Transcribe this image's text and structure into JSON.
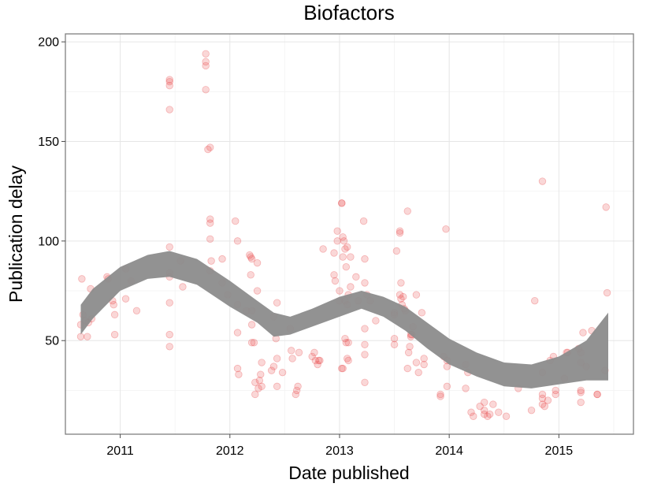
{
  "chart_data": {
    "type": "scatter",
    "title": "Biofactors",
    "xlabel": "Date published",
    "ylabel": "Publication delay",
    "x_ticks": [
      "2011",
      "2012",
      "2013",
      "2014",
      "2015"
    ],
    "y_ticks": [
      "50",
      "100",
      "150",
      "200"
    ],
    "xlim": [
      2010.5,
      2015.68
    ],
    "ylim": [
      3,
      204
    ],
    "grid": true,
    "point_color": "#e8474a",
    "band_color": "#8c8c8c",
    "points": [
      [
        2010.64,
        58
      ],
      [
        2010.64,
        52
      ],
      [
        2010.65,
        81
      ],
      [
        2010.66,
        63
      ],
      [
        2010.68,
        60
      ],
      [
        2010.7,
        52
      ],
      [
        2010.71,
        59
      ],
      [
        2010.73,
        76
      ],
      [
        2010.74,
        61
      ],
      [
        2010.88,
        82
      ],
      [
        2010.89,
        81
      ],
      [
        2010.93,
        70
      ],
      [
        2010.94,
        68
      ],
      [
        2010.95,
        63
      ],
      [
        2010.95,
        53
      ],
      [
        2011.05,
        86
      ],
      [
        2011.05,
        71
      ],
      [
        2011.1,
        80
      ],
      [
        2011.15,
        65
      ],
      [
        2011.45,
        181
      ],
      [
        2011.45,
        180
      ],
      [
        2011.45,
        178
      ],
      [
        2011.45,
        166
      ],
      [
        2011.45,
        97
      ],
      [
        2011.45,
        84
      ],
      [
        2011.45,
        82
      ],
      [
        2011.45,
        69
      ],
      [
        2011.45,
        53
      ],
      [
        2011.45,
        47
      ],
      [
        2011.55,
        90
      ],
      [
        2011.57,
        77
      ],
      [
        2011.78,
        194
      ],
      [
        2011.78,
        190
      ],
      [
        2011.78,
        188
      ],
      [
        2011.78,
        176
      ],
      [
        2011.8,
        146
      ],
      [
        2011.82,
        147
      ],
      [
        2011.82,
        111
      ],
      [
        2011.82,
        109
      ],
      [
        2011.82,
        101
      ],
      [
        2011.83,
        90
      ],
      [
        2011.82,
        85
      ],
      [
        2011.93,
        91
      ],
      [
        2011.93,
        79
      ],
      [
        2011.98,
        73
      ],
      [
        2012.05,
        110
      ],
      [
        2012.07,
        100
      ],
      [
        2012.07,
        68
      ],
      [
        2012.07,
        54
      ],
      [
        2012.07,
        36
      ],
      [
        2012.08,
        33
      ],
      [
        2012.15,
        65
      ],
      [
        2012.18,
        93
      ],
      [
        2012.19,
        92
      ],
      [
        2012.2,
        91
      ],
      [
        2012.19,
        83
      ],
      [
        2012.2,
        65
      ],
      [
        2012.2,
        58
      ],
      [
        2012.2,
        49
      ],
      [
        2012.22,
        49
      ],
      [
        2012.25,
        89
      ],
      [
        2012.25,
        75
      ],
      [
        2012.23,
        29
      ],
      [
        2012.23,
        23
      ],
      [
        2012.26,
        26
      ],
      [
        2012.27,
        30
      ],
      [
        2012.28,
        33
      ],
      [
        2012.29,
        39
      ],
      [
        2012.29,
        27
      ],
      [
        2012.38,
        35
      ],
      [
        2012.4,
        37
      ],
      [
        2012.4,
        62
      ],
      [
        2012.42,
        51
      ],
      [
        2012.43,
        69
      ],
      [
        2012.43,
        41
      ],
      [
        2012.43,
        27
      ],
      [
        2012.48,
        34
      ],
      [
        2012.55,
        56
      ],
      [
        2012.56,
        45
      ],
      [
        2012.57,
        41
      ],
      [
        2012.6,
        23
      ],
      [
        2012.61,
        25
      ],
      [
        2012.62,
        27
      ],
      [
        2012.63,
        44
      ],
      [
        2012.75,
        42
      ],
      [
        2012.77,
        44
      ],
      [
        2012.78,
        40
      ],
      [
        2012.8,
        38
      ],
      [
        2012.81,
        40
      ],
      [
        2012.82,
        40
      ],
      [
        2012.85,
        96
      ],
      [
        2012.95,
        94
      ],
      [
        2012.95,
        83
      ],
      [
        2012.96,
        80
      ],
      [
        2012.98,
        105
      ],
      [
        2012.98,
        100
      ],
      [
        2013.0,
        70
      ],
      [
        2013.0,
        75
      ],
      [
        2013.02,
        119
      ],
      [
        2013.02,
        119
      ],
      [
        2013.03,
        92
      ],
      [
        2013.03,
        102
      ],
      [
        2013.04,
        100
      ],
      [
        2013.05,
        96
      ],
      [
        2013.06,
        87
      ],
      [
        2013.07,
        97
      ],
      [
        2013.05,
        70
      ],
      [
        2013.07,
        68
      ],
      [
        2013.08,
        73
      ],
      [
        2013.1,
        92
      ],
      [
        2013.1,
        77
      ],
      [
        2013.02,
        36
      ],
      [
        2013.03,
        36
      ],
      [
        2013.05,
        51
      ],
      [
        2013.06,
        49
      ],
      [
        2013.07,
        41
      ],
      [
        2013.08,
        40
      ],
      [
        2013.08,
        49
      ],
      [
        2013.15,
        82
      ],
      [
        2013.17,
        70
      ],
      [
        2013.22,
        110
      ],
      [
        2013.23,
        91
      ],
      [
        2013.23,
        79
      ],
      [
        2013.23,
        56
      ],
      [
        2013.23,
        48
      ],
      [
        2013.23,
        43
      ],
      [
        2013.23,
        29
      ],
      [
        2013.25,
        73
      ],
      [
        2013.28,
        70
      ],
      [
        2013.33,
        60
      ],
      [
        2013.5,
        64
      ],
      [
        2013.5,
        63
      ],
      [
        2013.5,
        51
      ],
      [
        2013.5,
        48
      ],
      [
        2013.52,
        95
      ],
      [
        2013.55,
        105
      ],
      [
        2013.55,
        104
      ],
      [
        2013.55,
        73
      ],
      [
        2013.56,
        79
      ],
      [
        2013.56,
        71
      ],
      [
        2013.57,
        68
      ],
      [
        2013.58,
        72
      ],
      [
        2013.59,
        66
      ],
      [
        2013.6,
        65
      ],
      [
        2013.62,
        115
      ],
      [
        2013.62,
        36
      ],
      [
        2013.63,
        44
      ],
      [
        2013.64,
        47
      ],
      [
        2013.65,
        53
      ],
      [
        2013.65,
        52
      ],
      [
        2013.66,
        53
      ],
      [
        2013.67,
        57
      ],
      [
        2013.7,
        73
      ],
      [
        2013.7,
        39
      ],
      [
        2013.72,
        34
      ],
      [
        2013.75,
        64
      ],
      [
        2013.77,
        41
      ],
      [
        2013.77,
        38
      ],
      [
        2013.92,
        23
      ],
      [
        2013.92,
        22
      ],
      [
        2013.95,
        42
      ],
      [
        2013.97,
        106
      ],
      [
        2013.98,
        40
      ],
      [
        2013.98,
        37
      ],
      [
        2013.98,
        27
      ],
      [
        2014.15,
        38
      ],
      [
        2014.17,
        34
      ],
      [
        2014.15,
        26
      ],
      [
        2014.2,
        14
      ],
      [
        2014.22,
        12
      ],
      [
        2014.28,
        17
      ],
      [
        2014.32,
        19
      ],
      [
        2014.32,
        15
      ],
      [
        2014.32,
        13
      ],
      [
        2014.35,
        12
      ],
      [
        2014.37,
        13
      ],
      [
        2014.4,
        18
      ],
      [
        2014.45,
        14
      ],
      [
        2014.52,
        12
      ],
      [
        2014.63,
        26
      ],
      [
        2014.75,
        15
      ],
      [
        2014.78,
        70
      ],
      [
        2014.85,
        130
      ],
      [
        2014.85,
        34
      ],
      [
        2014.85,
        23
      ],
      [
        2014.85,
        21
      ],
      [
        2014.85,
        18
      ],
      [
        2014.87,
        17
      ],
      [
        2014.9,
        20
      ],
      [
        2014.92,
        40
      ],
      [
        2014.95,
        42
      ],
      [
        2014.97,
        25
      ],
      [
        2014.97,
        23
      ],
      [
        2015.05,
        31
      ],
      [
        2015.07,
        44
      ],
      [
        2015.08,
        44
      ],
      [
        2015.18,
        46
      ],
      [
        2015.2,
        44
      ],
      [
        2015.2,
        39
      ],
      [
        2015.2,
        25
      ],
      [
        2015.2,
        24
      ],
      [
        2015.2,
        19
      ],
      [
        2015.22,
        54
      ],
      [
        2015.25,
        37
      ],
      [
        2015.3,
        55
      ],
      [
        2015.35,
        23
      ],
      [
        2015.35,
        23
      ],
      [
        2015.42,
        35
      ],
      [
        2015.43,
        117
      ],
      [
        2015.44,
        74
      ]
    ],
    "smooth_band": {
      "x": [
        2010.64,
        2010.75,
        2011.0,
        2011.25,
        2011.45,
        2011.7,
        2012.0,
        2012.25,
        2012.4,
        2012.55,
        2012.75,
        2013.0,
        2013.2,
        2013.4,
        2013.6,
        2013.8,
        2014.0,
        2014.25,
        2014.5,
        2014.75,
        2015.0,
        2015.25,
        2015.45
      ],
      "lower": [
        53,
        61,
        75,
        81,
        82,
        78,
        67,
        59,
        52,
        53,
        57,
        62,
        66,
        62,
        55,
        46,
        38,
        32,
        27,
        26,
        28,
        30,
        30
      ],
      "upper": [
        68,
        76,
        87,
        93,
        95,
        91,
        80,
        70,
        64,
        62,
        66,
        72,
        75,
        72,
        67,
        59,
        51,
        44,
        39,
        38,
        42,
        50,
        64
      ]
    }
  }
}
